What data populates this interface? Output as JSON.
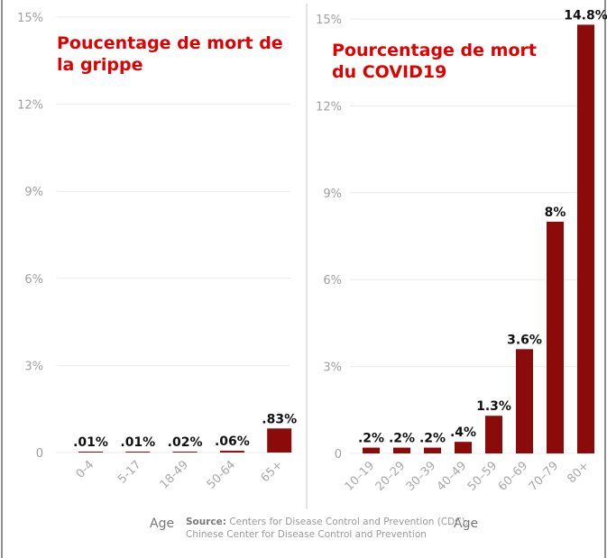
{
  "colors": {
    "bar": "#8b0b0b",
    "title": "#e00000"
  },
  "chart_data": [
    {
      "type": "bar",
      "title": "Poucentage de mort de la grippe",
      "xlabel": "Age",
      "ylabel": "",
      "ylim": [
        0,
        15
      ],
      "yticks": [
        "0",
        "3%",
        "6%",
        "9%",
        "12%",
        "15%"
      ],
      "ytick_values": [
        0,
        3,
        6,
        9,
        12,
        15
      ],
      "grid": true,
      "categories": [
        "0-4",
        "5-17",
        "18-49",
        "50-64",
        "65+"
      ],
      "values": [
        0.01,
        0.01,
        0.02,
        0.06,
        0.83
      ],
      "data_labels": [
        ".01%",
        ".01%",
        ".02%",
        ".06%",
        ".83%"
      ]
    },
    {
      "type": "bar",
      "title": "Pourcentage de mort du COVID19",
      "xlabel": "Age",
      "ylabel": "",
      "ylim": [
        0,
        15
      ],
      "yticks": [
        "0",
        "3%",
        "6%",
        "9%",
        "12%",
        "15%"
      ],
      "ytick_values": [
        0,
        3,
        6,
        9,
        12,
        15
      ],
      "grid": true,
      "categories": [
        "10–19",
        "20–29",
        "30–39",
        "40–49",
        "50–59",
        "60–69",
        "70–79",
        "80+"
      ],
      "values": [
        0.2,
        0.2,
        0.2,
        0.4,
        1.3,
        3.6,
        8,
        14.8
      ],
      "data_labels": [
        ".2%",
        ".2%",
        ".2%",
        ".4%",
        "1.3%",
        "3.6%",
        "8%",
        "14.8%"
      ]
    }
  ],
  "source": {
    "prefix": "Source:",
    "line1": " Centers for Disease Control and Prevention (CDC),",
    "line2": "Chinese Center for Disease Control and Prevention"
  }
}
